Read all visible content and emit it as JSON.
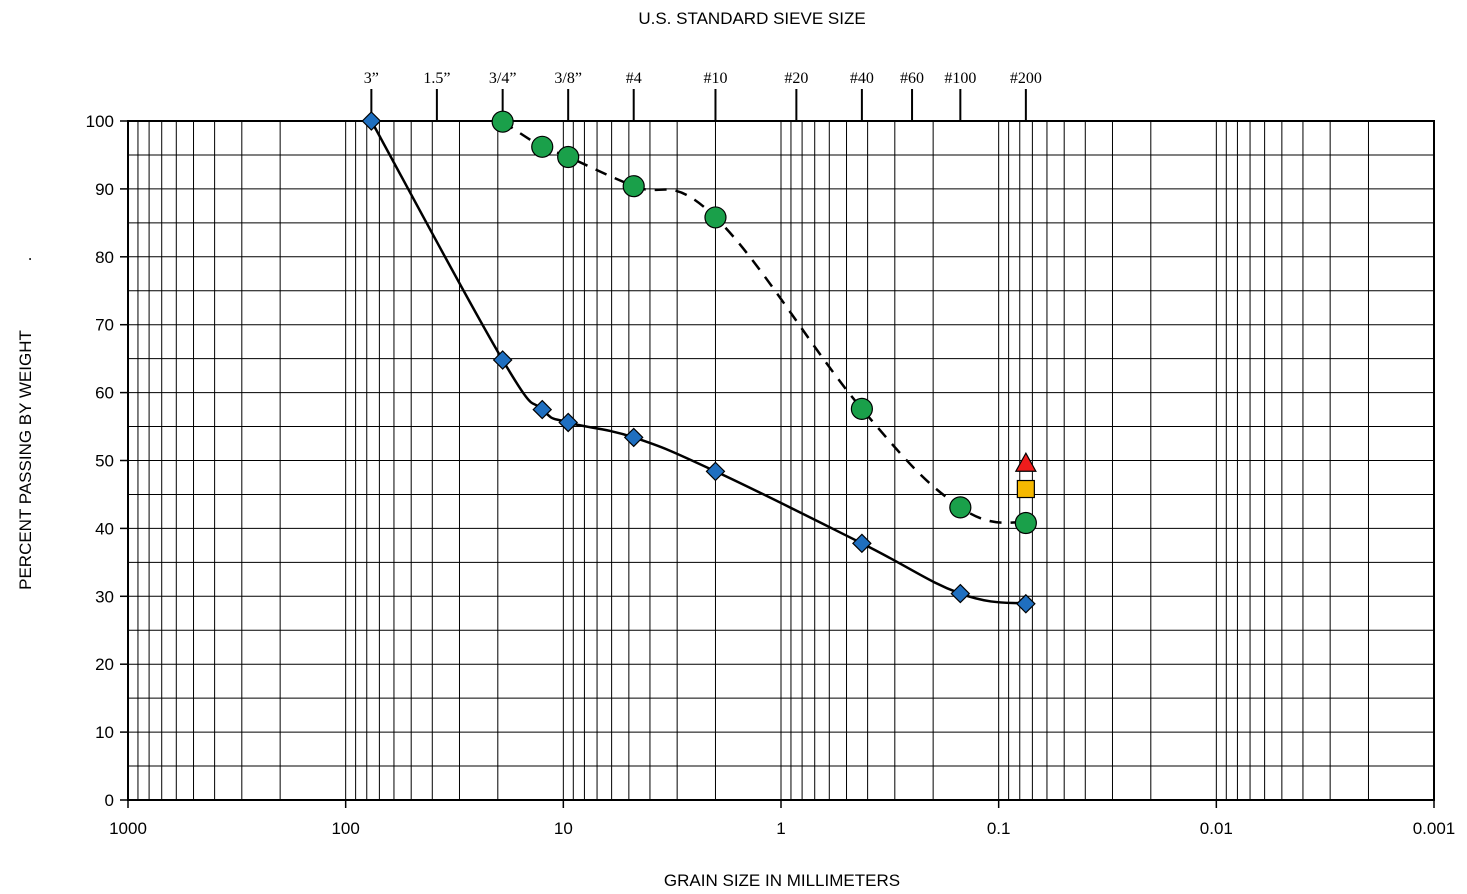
{
  "chart_data": {
    "type": "line",
    "title": "U.S. STANDARD SIEVE SIZE",
    "xlabel": "GRAIN SIZE IN MILLIMETERS",
    "ylabel": "PERCENT PASSING BY WEIGHT",
    "ylabel_suffix": ".",
    "x_scale": "log",
    "x_reversed": true,
    "xlim": [
      1000,
      0.001
    ],
    "ylim": [
      0,
      100
    ],
    "grid": true,
    "x_ticks": [
      {
        "value": 1000,
        "label": "1000"
      },
      {
        "value": 100,
        "label": "100"
      },
      {
        "value": 10,
        "label": "10"
      },
      {
        "value": 1,
        "label": "1"
      },
      {
        "value": 0.1,
        "label": "0.1"
      },
      {
        "value": 0.01,
        "label": "0.01"
      },
      {
        "value": 0.001,
        "label": "0.001"
      }
    ],
    "y_ticks": [
      0,
      10,
      20,
      30,
      40,
      50,
      60,
      70,
      80,
      90,
      100
    ],
    "sieves": [
      {
        "label": "3”",
        "mm": 76.2
      },
      {
        "label": "1.5”",
        "mm": 38.1
      },
      {
        "label": "3/4”",
        "mm": 19.0
      },
      {
        "label": "3/8”",
        "mm": 9.5
      },
      {
        "label": "#4",
        "mm": 4.75
      },
      {
        "label": "#10",
        "mm": 2.0
      },
      {
        "label": "#20",
        "mm": 0.85
      },
      {
        "label": "#40",
        "mm": 0.425
      },
      {
        "label": "#60",
        "mm": 0.25
      },
      {
        "label": "#100",
        "mm": 0.15
      },
      {
        "label": "#200",
        "mm": 0.075
      }
    ],
    "series": [
      {
        "marker": "diamond",
        "color": "#1f6fc0",
        "line": "solid",
        "x": [
          76.2,
          19.0,
          12.5,
          9.5,
          4.75,
          2.0,
          0.425,
          0.15,
          0.075
        ],
        "y": [
          100,
          64.8,
          57.5,
          55.6,
          53.4,
          48.4,
          37.8,
          30.4,
          28.9
        ]
      },
      {
        "marker": "circle",
        "color": "#1aa04a",
        "line": "dashed",
        "x": [
          19.0,
          12.5,
          9.5,
          4.75,
          2.0,
          0.425,
          0.15,
          0.075
        ],
        "y": [
          99.9,
          96.2,
          94.7,
          90.4,
          85.8,
          57.6,
          43.1,
          40.8
        ]
      },
      {
        "marker": "triangle",
        "color": "#ee1c1c",
        "line": "none",
        "x": [
          0.075
        ],
        "y": [
          49.6
        ]
      },
      {
        "marker": "square",
        "color": "#f5b800",
        "line": "none",
        "x": [
          0.075
        ],
        "y": [
          45.8
        ]
      }
    ]
  }
}
